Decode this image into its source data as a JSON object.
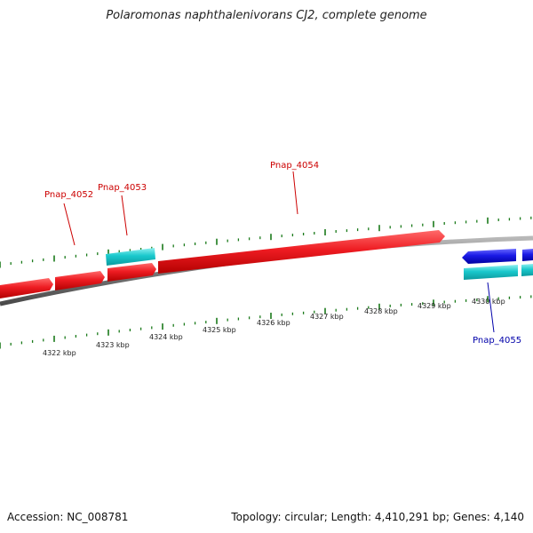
{
  "title": "Polaromonas naphthalenivorans CJ2, complete genome",
  "footer": {
    "accession": "Accession: NC_008781",
    "summary": "Topology: circular; Length: 4,410,291 bp; Genes: 4,140"
  },
  "colors": {
    "forward_gene": "#e8141c",
    "reverse_gene": "#1a1ae6",
    "cds_feature": "#19c8cc",
    "backbone": "#7a7a7a",
    "ticks": "#1a7a1a",
    "forward_label": "#cc0000",
    "reverse_label": "#0000aa"
  },
  "scale": {
    "unit": "kbp",
    "labels": [
      "4322 kbp",
      "4323 kbp",
      "4324 kbp",
      "4325 kbp",
      "4326 kbp",
      "4327 kbp",
      "4328 kbp",
      "4329 kbp",
      "4330 kbp"
    ]
  },
  "genes": [
    {
      "id": "Pnap_4052",
      "label": "Pnap_4052",
      "strand": "+"
    },
    {
      "id": "Pnap_4053",
      "label": "Pnap_4053",
      "strand": "+"
    },
    {
      "id": "Pnap_4054",
      "label": "Pnap_4054",
      "strand": "+"
    },
    {
      "id": "Pnap_4055",
      "label": "Pnap_4055",
      "strand": "-"
    }
  ]
}
